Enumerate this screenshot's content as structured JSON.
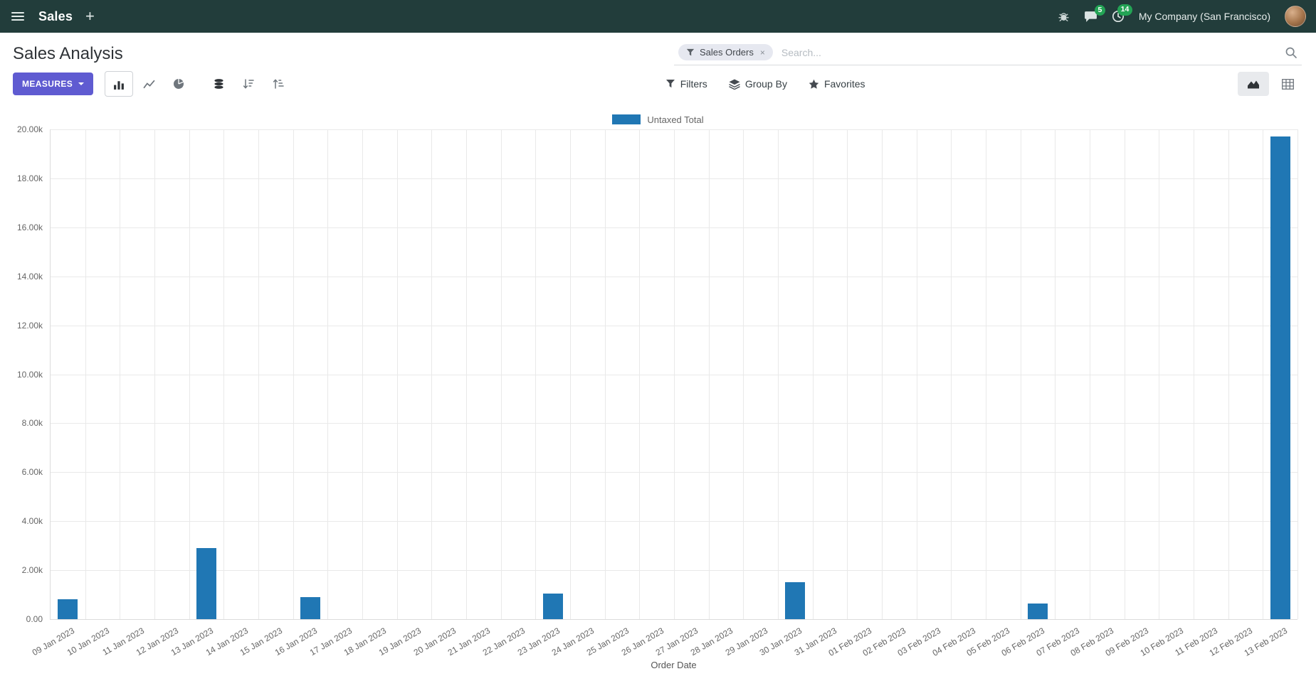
{
  "colors": {
    "topbar_bg": "#223d3b",
    "accent": "#5f5bd1",
    "bar": "#2077b4",
    "badge": "#23a455"
  },
  "nav": {
    "app_name": "Sales",
    "plus": "+",
    "messages_badge": "5",
    "activities_badge": "14",
    "company": "My Company (San Francisco)"
  },
  "control_panel": {
    "title": "Sales Analysis",
    "measures_label": "MEASURES",
    "search": {
      "facet": "Sales Orders",
      "remove": "×",
      "placeholder": "Search..."
    },
    "filters_label": "Filters",
    "group_by_label": "Group By",
    "favorites_label": "Favorites"
  },
  "chart_data": {
    "type": "bar",
    "title": "",
    "legend": [
      "Untaxed Total"
    ],
    "xlabel": "Order Date",
    "ylabel": "",
    "ylim": [
      0,
      20000
    ],
    "grid": true,
    "legend_position": "top",
    "y_ticks": [
      "0.00",
      "2.00k",
      "4.00k",
      "6.00k",
      "8.00k",
      "10.00k",
      "12.00k",
      "14.00k",
      "16.00k",
      "18.00k",
      "20.00k"
    ],
    "categories": [
      "09 Jan 2023",
      "10 Jan 2023",
      "11 Jan 2023",
      "12 Jan 2023",
      "13 Jan 2023",
      "14 Jan 2023",
      "15 Jan 2023",
      "16 Jan 2023",
      "17 Jan 2023",
      "18 Jan 2023",
      "19 Jan 2023",
      "20 Jan 2023",
      "21 Jan 2023",
      "22 Jan 2023",
      "23 Jan 2023",
      "24 Jan 2023",
      "25 Jan 2023",
      "26 Jan 2023",
      "27 Jan 2023",
      "28 Jan 2023",
      "29 Jan 2023",
      "30 Jan 2023",
      "31 Jan 2023",
      "01 Feb 2023",
      "02 Feb 2023",
      "03 Feb 2023",
      "04 Feb 2023",
      "05 Feb 2023",
      "06 Feb 2023",
      "07 Feb 2023",
      "08 Feb 2023",
      "09 Feb 2023",
      "10 Feb 2023",
      "11 Feb 2023",
      "12 Feb 2023",
      "13 Feb 2023"
    ],
    "series": [
      {
        "name": "Untaxed Total",
        "values": [
          800,
          0,
          0,
          0,
          2900,
          0,
          0,
          900,
          0,
          0,
          0,
          0,
          0,
          0,
          1050,
          0,
          0,
          0,
          0,
          0,
          0,
          1500,
          0,
          0,
          0,
          0,
          0,
          0,
          650,
          0,
          0,
          0,
          0,
          0,
          0,
          19700
        ]
      }
    ]
  }
}
